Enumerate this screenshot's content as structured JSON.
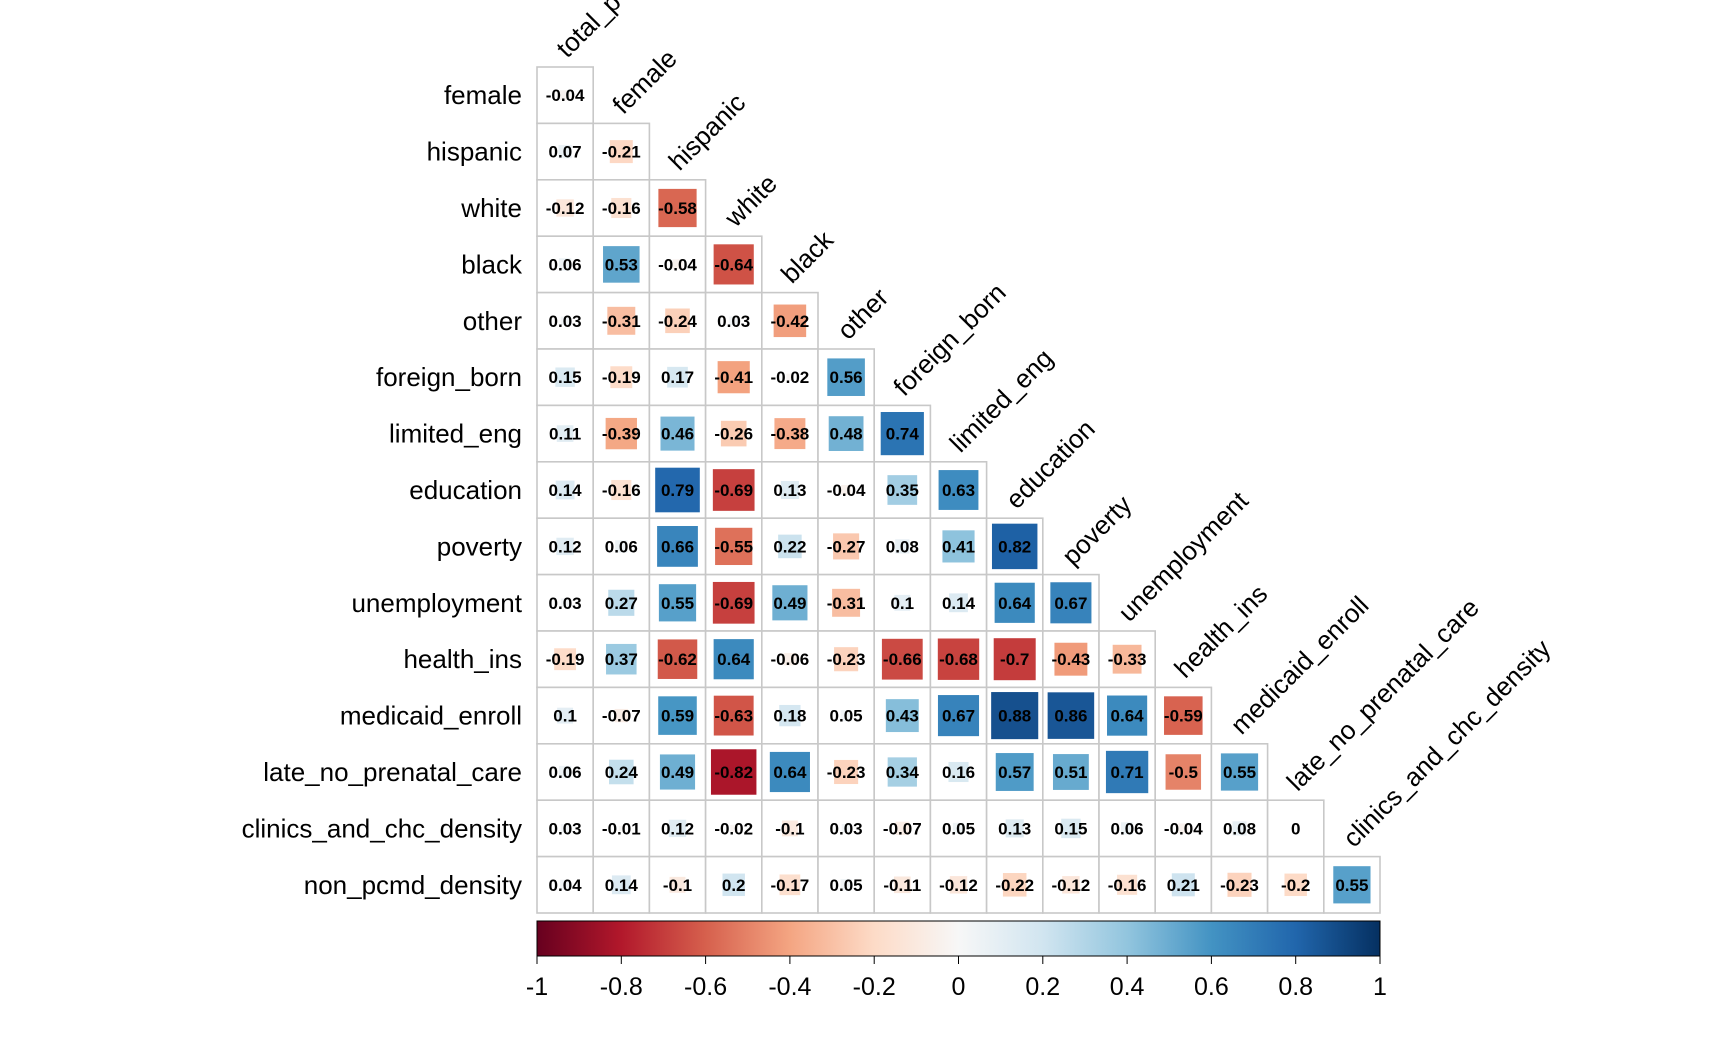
{
  "chart_data": {
    "type": "heatmap",
    "variant": "lower-triangle correlation matrix with sized squares and coefficient labels",
    "row_labels": [
      "female",
      "hispanic",
      "white",
      "black",
      "other",
      "foreign_born",
      "limited_eng",
      "education",
      "poverty",
      "unemployment",
      "health_ins",
      "medicaid_enroll",
      "late_no_prenatal_care",
      "clinics_and_chc_density",
      "non_pcmd_density"
    ],
    "col_labels": [
      "total_p",
      "female",
      "hispanic",
      "white",
      "black",
      "other",
      "foreign_born",
      "limited_eng",
      "education",
      "poverty",
      "unemployment",
      "health_ins",
      "medicaid_enroll",
      "late_no_prenatal_care",
      "clinics_and_chc_density"
    ],
    "values": [
      [
        "-0.04"
      ],
      [
        "0.07",
        "-0.21"
      ],
      [
        "-0.12",
        "-0.16",
        "-0.58"
      ],
      [
        "0.06",
        "0.53",
        "-0.04",
        "-0.64"
      ],
      [
        "0.03",
        "-0.31",
        "-0.24",
        "0.03",
        "-0.42"
      ],
      [
        "0.15",
        "-0.19",
        "0.17",
        "-0.41",
        "-0.02",
        "0.56"
      ],
      [
        "0.11",
        "-0.39",
        "0.46",
        "-0.26",
        "-0.38",
        "0.48",
        "0.74"
      ],
      [
        "0.14",
        "-0.16",
        "0.79",
        "-0.69",
        "0.13",
        "-0.04",
        "0.35",
        "0.63"
      ],
      [
        "0.12",
        "0.06",
        "0.66",
        "-0.55",
        "0.22",
        "-0.27",
        "0.08",
        "0.41",
        "0.82"
      ],
      [
        "0.03",
        "0.27",
        "0.55",
        "-0.69",
        "0.49",
        "-0.31",
        "0.1",
        "0.14",
        "0.64",
        "0.67"
      ],
      [
        "-0.19",
        "0.37",
        "-0.62",
        "0.64",
        "-0.06",
        "-0.23",
        "-0.66",
        "-0.68",
        "-0.7",
        "-0.43",
        "-0.33"
      ],
      [
        "0.1",
        "-0.07",
        "0.59",
        "-0.63",
        "0.18",
        "0.05",
        "0.43",
        "0.67",
        "0.88",
        "0.86",
        "0.64",
        "-0.59"
      ],
      [
        "0.06",
        "0.24",
        "0.49",
        "-0.82",
        "0.64",
        "-0.23",
        "0.34",
        "0.16",
        "0.57",
        "0.51",
        "0.71",
        "-0.5",
        "0.55"
      ],
      [
        "0.03",
        "-0.01",
        "0.12",
        "-0.02",
        "-0.1",
        "0.03",
        "-0.07",
        "0.05",
        "0.13",
        "0.15",
        "0.06",
        "-0.04",
        "0.08",
        "0"
      ],
      [
        "0.04",
        "0.14",
        "-0.1",
        "0.2",
        "-0.17",
        "0.05",
        "-0.11",
        "-0.12",
        "-0.22",
        "-0.12",
        "-0.16",
        "0.21",
        "-0.23",
        "-0.2",
        "0.55"
      ]
    ],
    "color_scale": {
      "range": [
        -1,
        1
      ],
      "stops": [
        "#67001f",
        "#b2182b",
        "#d6604d",
        "#f4a582",
        "#fddbc7",
        "#f7f7f7",
        "#d1e5f0",
        "#92c5de",
        "#4393c3",
        "#2166ac",
        "#053061"
      ],
      "tick_labels": [
        "-1",
        "-0.8",
        "-0.6",
        "-0.4",
        "-0.2",
        "0",
        "0.2",
        "0.4",
        "0.6",
        "0.8",
        "1"
      ]
    },
    "grid": true,
    "legend_position": "bottom"
  }
}
